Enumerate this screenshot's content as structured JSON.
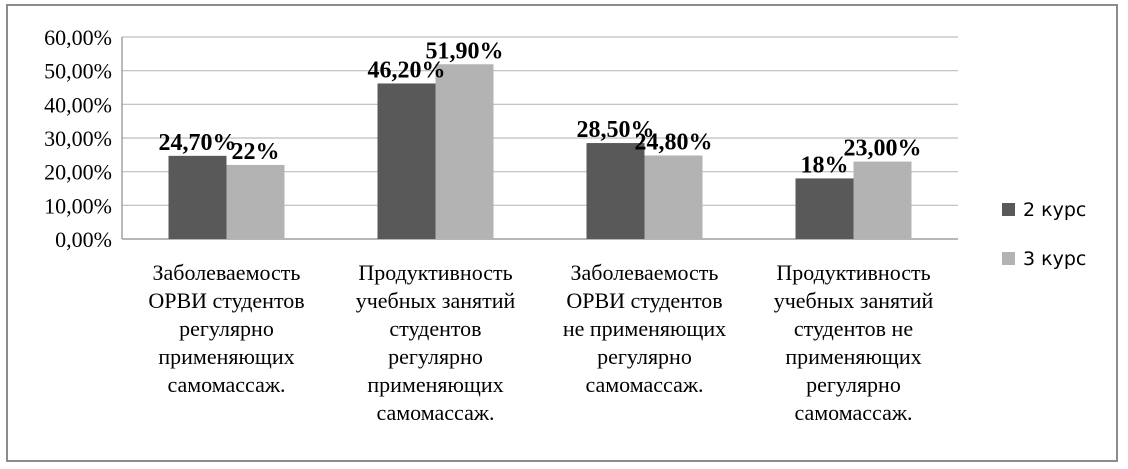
{
  "chart_data": {
    "type": "bar",
    "title": "",
    "xlabel": "",
    "ylabel": "",
    "ylim": [
      0,
      60
    ],
    "ytick_labels": [
      "0,00%",
      "10,00%",
      "20,00%",
      "30,00%",
      "40,00%",
      "50,00%",
      "60,00%"
    ],
    "grid": true,
    "legend_position": "right",
    "categories": [
      [
        "Заболеваемость",
        "ОРВИ студентов",
        "регулярно",
        "применяющих",
        "самомассаж."
      ],
      [
        "Продуктивность",
        "учебных занятий",
        "студентов",
        "регулярно",
        "применяющих",
        "самомассаж."
      ],
      [
        "Заболеваемость",
        "ОРВИ студентов",
        "не применяющих",
        "регулярно",
        "самомассаж."
      ],
      [
        "Продуктивность",
        "учебных занятий",
        "студентов не",
        "применяющих",
        "регулярно",
        "самомассаж."
      ]
    ],
    "series": [
      {
        "name": "2 курс",
        "color": "#595959",
        "values": [
          24.7,
          46.2,
          28.5,
          18.0
        ],
        "labels": [
          "24,70%",
          "46,20%",
          "28,50%",
          "18%"
        ]
      },
      {
        "name": "3 курс",
        "color": "#b3b3b3",
        "values": [
          22.0,
          51.9,
          24.8,
          23.0
        ],
        "labels": [
          "22%",
          "51,90%",
          "24,80%",
          "23,00%"
        ]
      }
    ]
  }
}
